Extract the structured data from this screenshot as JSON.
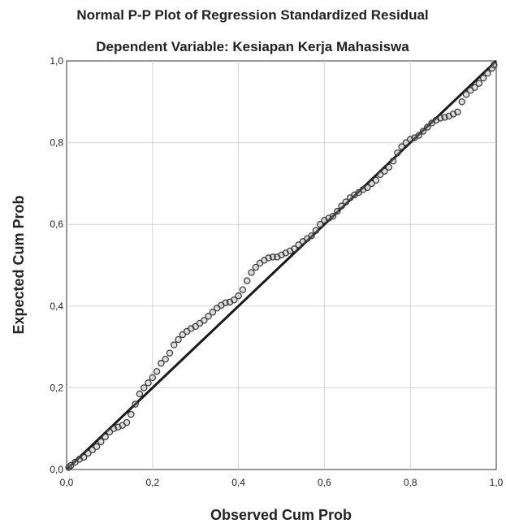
{
  "chart_data": {
    "type": "scatter",
    "title": "Normal P-P Plot of Regression Standardized Residual",
    "subtitle": "Dependent Variable: Kesiapan Kerja Mahasiswa",
    "xlabel": "Observed Cum Prob",
    "ylabel": "Expected Cum Prob",
    "xlim": [
      0,
      1
    ],
    "ylim": [
      0,
      1
    ],
    "x_ticks": [
      0,
      0.2,
      0.4,
      0.6,
      0.8,
      1.0
    ],
    "y_ticks": [
      0,
      0.2,
      0.4,
      0.6,
      0.8,
      1.0
    ],
    "x_tick_labels": [
      "0,0",
      "0,2",
      "0,4",
      "0,6",
      "0,8",
      "1,0"
    ],
    "y_tick_labels": [
      "0,0",
      "0,2",
      "0,4",
      "0,6",
      "0,8",
      "1,0"
    ],
    "grid": true,
    "reference_line": {
      "from": [
        0,
        0
      ],
      "to": [
        1,
        1
      ]
    },
    "series": [
      {
        "points": [
          [
            0.005,
            0.005
          ],
          [
            0.01,
            0.01
          ],
          [
            0.02,
            0.018
          ],
          [
            0.03,
            0.025
          ],
          [
            0.04,
            0.03
          ],
          [
            0.05,
            0.04
          ],
          [
            0.06,
            0.048
          ],
          [
            0.07,
            0.056
          ],
          [
            0.08,
            0.068
          ],
          [
            0.09,
            0.08
          ],
          [
            0.1,
            0.092
          ],
          [
            0.11,
            0.1
          ],
          [
            0.12,
            0.104
          ],
          [
            0.13,
            0.108
          ],
          [
            0.14,
            0.115
          ],
          [
            0.15,
            0.135
          ],
          [
            0.16,
            0.16
          ],
          [
            0.17,
            0.185
          ],
          [
            0.18,
            0.2
          ],
          [
            0.19,
            0.212
          ],
          [
            0.2,
            0.225
          ],
          [
            0.21,
            0.24
          ],
          [
            0.22,
            0.26
          ],
          [
            0.23,
            0.27
          ],
          [
            0.24,
            0.285
          ],
          [
            0.25,
            0.305
          ],
          [
            0.26,
            0.318
          ],
          [
            0.27,
            0.33
          ],
          [
            0.28,
            0.338
          ],
          [
            0.29,
            0.345
          ],
          [
            0.3,
            0.35
          ],
          [
            0.31,
            0.358
          ],
          [
            0.32,
            0.365
          ],
          [
            0.33,
            0.375
          ],
          [
            0.34,
            0.385
          ],
          [
            0.35,
            0.395
          ],
          [
            0.36,
            0.402
          ],
          [
            0.37,
            0.408
          ],
          [
            0.38,
            0.41
          ],
          [
            0.39,
            0.415
          ],
          [
            0.4,
            0.425
          ],
          [
            0.41,
            0.44
          ],
          [
            0.42,
            0.462
          ],
          [
            0.43,
            0.482
          ],
          [
            0.44,
            0.495
          ],
          [
            0.45,
            0.505
          ],
          [
            0.46,
            0.512
          ],
          [
            0.47,
            0.518
          ],
          [
            0.48,
            0.52
          ],
          [
            0.49,
            0.52
          ],
          [
            0.5,
            0.525
          ],
          [
            0.51,
            0.53
          ],
          [
            0.52,
            0.535
          ],
          [
            0.53,
            0.54
          ],
          [
            0.54,
            0.55
          ],
          [
            0.55,
            0.558
          ],
          [
            0.56,
            0.565
          ],
          [
            0.57,
            0.572
          ],
          [
            0.58,
            0.585
          ],
          [
            0.59,
            0.6
          ],
          [
            0.6,
            0.61
          ],
          [
            0.61,
            0.615
          ],
          [
            0.62,
            0.62
          ],
          [
            0.63,
            0.632
          ],
          [
            0.64,
            0.645
          ],
          [
            0.65,
            0.655
          ],
          [
            0.66,
            0.665
          ],
          [
            0.67,
            0.672
          ],
          [
            0.68,
            0.678
          ],
          [
            0.69,
            0.685
          ],
          [
            0.7,
            0.69
          ],
          [
            0.71,
            0.7
          ],
          [
            0.72,
            0.708
          ],
          [
            0.73,
            0.722
          ],
          [
            0.74,
            0.73
          ],
          [
            0.75,
            0.74
          ],
          [
            0.76,
            0.755
          ],
          [
            0.77,
            0.775
          ],
          [
            0.78,
            0.79
          ],
          [
            0.79,
            0.8
          ],
          [
            0.8,
            0.808
          ],
          [
            0.81,
            0.812
          ],
          [
            0.82,
            0.818
          ],
          [
            0.83,
            0.828
          ],
          [
            0.84,
            0.838
          ],
          [
            0.85,
            0.848
          ],
          [
            0.86,
            0.855
          ],
          [
            0.87,
            0.86
          ],
          [
            0.88,
            0.862
          ],
          [
            0.89,
            0.865
          ],
          [
            0.9,
            0.87
          ],
          [
            0.91,
            0.875
          ],
          [
            0.92,
            0.9
          ],
          [
            0.93,
            0.918
          ],
          [
            0.94,
            0.928
          ],
          [
            0.95,
            0.935
          ],
          [
            0.96,
            0.945
          ],
          [
            0.97,
            0.958
          ],
          [
            0.98,
            0.97
          ],
          [
            0.99,
            0.982
          ],
          [
            0.995,
            0.99
          ]
        ]
      }
    ]
  }
}
